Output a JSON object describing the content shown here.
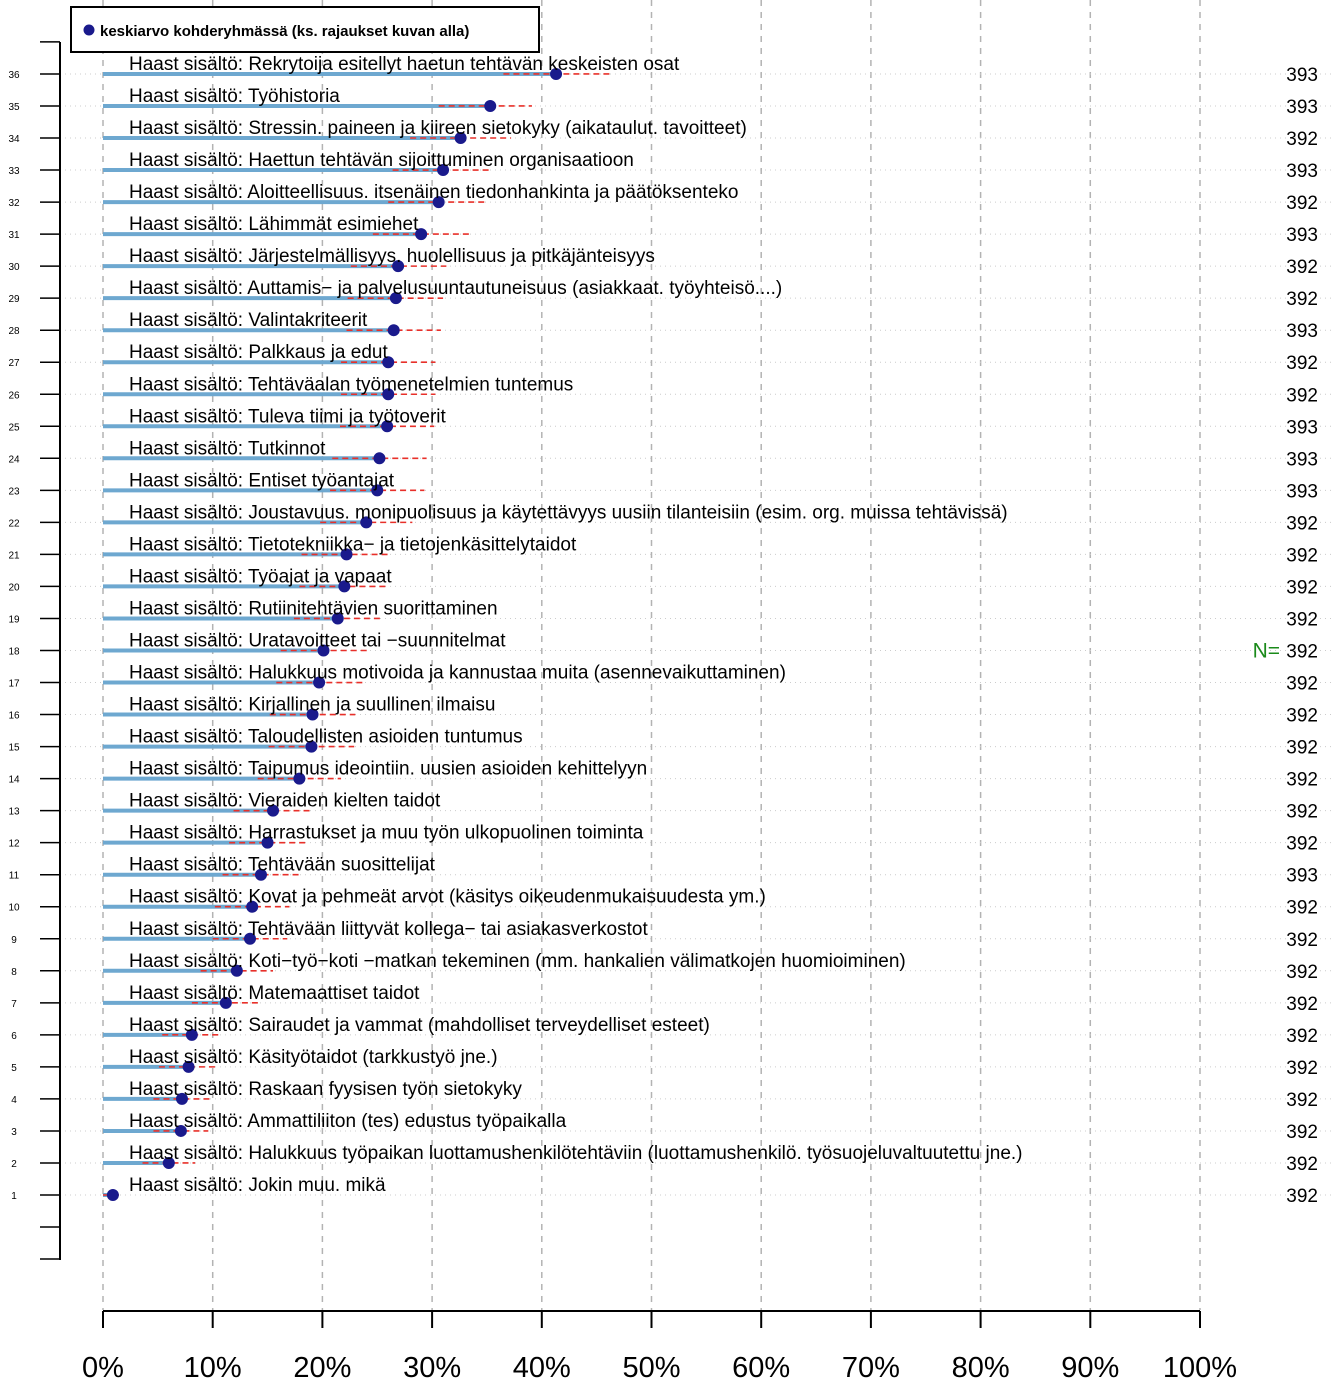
{
  "chart_data": {
    "type": "scatter",
    "legend": {
      "label": "keskiarvo kohderyhmässä (ks. rajaukset kuvan alla)",
      "position": "top-left"
    },
    "n_prefix": "N=",
    "xlim": [
      0,
      100
    ],
    "x_ticks": [
      {
        "value": 0,
        "label": "0%"
      },
      {
        "value": 10,
        "label": "10%"
      },
      {
        "value": 20,
        "label": "20%"
      },
      {
        "value": 30,
        "label": "30%"
      },
      {
        "value": 40,
        "label": "40%"
      },
      {
        "value": 50,
        "label": "50%"
      },
      {
        "value": 60,
        "label": "60%"
      },
      {
        "value": 70,
        "label": "70%"
      },
      {
        "value": 80,
        "label": "80%"
      },
      {
        "value": 90,
        "label": "90%"
      },
      {
        "value": 100,
        "label": "100%"
      }
    ],
    "grid": "vertical dashed",
    "colors": {
      "bar": "#6ea8d0",
      "dot": "#1a1a8c",
      "ci": "#e8302a",
      "n_prefix": "#1a8a1a",
      "grid": "#b3b3b3"
    },
    "items": [
      {
        "row": 36,
        "label": "Haast sisältö: Rekrytoija esitellyt haetun tehtävän keskeisten osat",
        "mean": 41.3,
        "ci": [
          36.5,
          46.2
        ],
        "n": "393"
      },
      {
        "row": 35,
        "label": "Haast sisältö: Työhistoria",
        "mean": 35.3,
        "ci": [
          30.6,
          39.1
        ],
        "n": "393"
      },
      {
        "row": 34,
        "label": "Haast sisältö: Stressin. paineen ja kiireen sietokyky (aikataulut. tavoitteet)",
        "mean": 32.6,
        "ci": [
          28.0,
          37.2
        ],
        "n": "392"
      },
      {
        "row": 33,
        "label": "Haast sisältö: Haettun tehtävän sijoittuminen organisaatioon",
        "mean": 31.0,
        "ci": [
          26.4,
          35.5
        ],
        "n": "393"
      },
      {
        "row": 32,
        "label": "Haast sisältö: Aloitteellisuus. itsenäinen tiedonhankinta ja päätöksenteko",
        "mean": 30.6,
        "ci": [
          26.0,
          35.1
        ],
        "n": "392"
      },
      {
        "row": 31,
        "label": "Haast sisältö: Lähimmät esimiehet",
        "mean": 29.0,
        "ci": [
          24.6,
          33.5
        ],
        "n": "393"
      },
      {
        "row": 30,
        "label": "Haast sisältö: Järjestelmällisyys. huolellisuus ja pitkäjänteisyys",
        "mean": 26.9,
        "ci": [
          22.6,
          31.3
        ],
        "n": "392"
      },
      {
        "row": 29,
        "label": "Haast sisältö: Auttamis− ja palvelusuuntautuneisuus (asiakkaat. työyhteisö....)",
        "mean": 26.7,
        "ci": [
          22.3,
          31.0
        ],
        "n": "392"
      },
      {
        "row": 28,
        "label": "Haast sisältö: Valintakriteerit",
        "mean": 26.5,
        "ci": [
          22.2,
          30.8
        ],
        "n": "393"
      },
      {
        "row": 27,
        "label": "Haast sisältö: Palkkaus ja edut",
        "mean": 26.0,
        "ci": [
          21.7,
          30.3
        ],
        "n": "392"
      },
      {
        "row": 26,
        "label": "Haast sisältö: Tehtäväalan työmenetelmien tuntemus",
        "mean": 26.0,
        "ci": [
          21.7,
          30.3
        ],
        "n": "392"
      },
      {
        "row": 25,
        "label": "Haast sisältö: Tuleva tiimi ja työtoverit",
        "mean": 25.9,
        "ci": [
          21.6,
          30.2
        ],
        "n": "393"
      },
      {
        "row": 24,
        "label": "Haast sisältö: Tutkinnot",
        "mean": 25.2,
        "ci": [
          20.9,
          29.5
        ],
        "n": "393"
      },
      {
        "row": 23,
        "label": "Haast sisältö: Entiset työantajat",
        "mean": 25.0,
        "ci": [
          20.7,
          29.3
        ],
        "n": "393"
      },
      {
        "row": 22,
        "label": "Haast sisältö: Joustavuus. monipuolisuus ja käytettävyys uusiin tilanteisiin (esim. org. muissa tehtävissä)",
        "mean": 24.0,
        "ci": [
          19.8,
          28.2
        ],
        "n": "392"
      },
      {
        "row": 21,
        "label": "Haast sisältö: Tietotekniikka− ja tietojenkäsittelytaidot",
        "mean": 22.2,
        "ci": [
          18.1,
          26.3
        ],
        "n": "392"
      },
      {
        "row": 20,
        "label": "Haast sisältö: Työajat ja vapaat",
        "mean": 22.0,
        "ci": [
          17.9,
          26.1
        ],
        "n": "392"
      },
      {
        "row": 19,
        "label": "Haast sisältö: Rutiinitehtävien suorittaminen",
        "mean": 21.4,
        "ci": [
          17.4,
          25.5
        ],
        "n": "392"
      },
      {
        "row": 18,
        "label": "Haast sisältö: Uratavoitteet tai −suunnitelmat",
        "mean": 20.1,
        "ci": [
          16.2,
          24.1
        ],
        "n": "392"
      },
      {
        "row": 17,
        "label": "Haast sisältö: Halukkuus motivoida ja kannustaa muita (asennevaikuttaminen)",
        "mean": 19.7,
        "ci": [
          15.8,
          23.7
        ],
        "n": "392"
      },
      {
        "row": 16,
        "label": "Haast sisältö: Kirjallinen ja suullinen ilmaisu",
        "mean": 19.1,
        "ci": [
          15.2,
          23.0
        ],
        "n": "392"
      },
      {
        "row": 15,
        "label": "Haast sisältö: Taloudellisten asioiden tuntumus",
        "mean": 19.0,
        "ci": [
          15.1,
          22.9
        ],
        "n": "392"
      },
      {
        "row": 14,
        "label": "Haast sisältö: Taipumus ideointiin. uusien asioiden kehittelyyn",
        "mean": 17.9,
        "ci": [
          14.1,
          21.7
        ],
        "n": "392"
      },
      {
        "row": 13,
        "label": "Haast sisältö: Vieraiden kielten taidot",
        "mean": 15.5,
        "ci": [
          11.9,
          19.1
        ],
        "n": "392"
      },
      {
        "row": 12,
        "label": "Haast sisältö: Harrastukset ja muu työn ulkopuolinen toiminta",
        "mean": 15.0,
        "ci": [
          11.5,
          18.5
        ],
        "n": "392"
      },
      {
        "row": 11,
        "label": "Haast sisältö: Tehtävään suosittelijat",
        "mean": 14.4,
        "ci": [
          10.9,
          17.9
        ],
        "n": "393"
      },
      {
        "row": 10,
        "label": "Haast sisältö: Kovat ja pehmeät arvot (käsitys oikeudenmukaisuudesta ym.)",
        "mean": 13.6,
        "ci": [
          10.2,
          17.0
        ],
        "n": "392"
      },
      {
        "row": 9,
        "label": "Haast sisältö: Tehtävään liittyvät kollega− tai asiakasverkostot",
        "mean": 13.4,
        "ci": [
          10.0,
          16.8
        ],
        "n": "392"
      },
      {
        "row": 8,
        "label": "Haast sisältö: Koti−työ−koti −matkan tekeminen (mm. hankalien välimatkojen huomioiminen)",
        "mean": 12.2,
        "ci": [
          8.9,
          15.5
        ],
        "n": "392"
      },
      {
        "row": 7,
        "label": "Haast sisältö: Matemaattiset taidot",
        "mean": 11.2,
        "ci": [
          8.1,
          14.4
        ],
        "n": "392"
      },
      {
        "row": 6,
        "label": "Haast sisältö: Sairaudet ja vammat (mahdolliset terveydelliset esteet)",
        "mean": 8.1,
        "ci": [
          5.4,
          10.8
        ],
        "n": "392"
      },
      {
        "row": 5,
        "label": "Haast sisältö: Käsityötaidot (tarkkustyö jne.)",
        "mean": 7.8,
        "ci": [
          5.1,
          10.5
        ],
        "n": "392"
      },
      {
        "row": 4,
        "label": "Haast sisältö: Raskaan fyysisen työn sietokyky",
        "mean": 7.2,
        "ci": [
          4.6,
          9.8
        ],
        "n": "392"
      },
      {
        "row": 3,
        "label": "Haast sisältö: Ammattiliiton (tes) edustus työpaikalla",
        "mean": 7.1,
        "ci": [
          4.6,
          9.6
        ],
        "n": "392"
      },
      {
        "row": 2,
        "label": "Haast sisältö: Halukkuus työpaikan luottamushenkilötehtäviin (luottamushenkilö. työsuojeluvaltuutettu jne.)",
        "mean": 6.0,
        "ci": [
          3.6,
          8.4
        ],
        "n": "392"
      },
      {
        "row": 1,
        "label": "Haast sisältö: Jokin muu. mikä",
        "mean": 0.9,
        "ci": [
          0.0,
          1.8
        ],
        "n": "392"
      }
    ]
  }
}
